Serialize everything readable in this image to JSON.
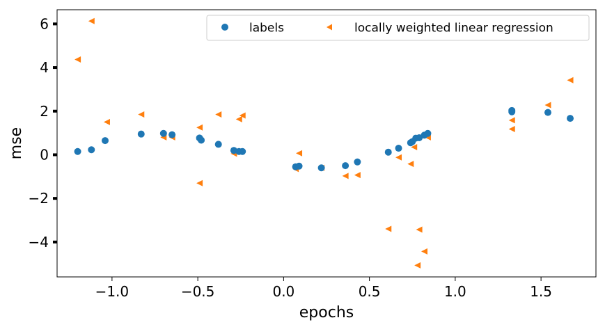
{
  "chart_data": {
    "type": "scatter",
    "title": "",
    "xlabel": "epochs",
    "ylabel": "mse",
    "xlim": [
      -1.32,
      1.82
    ],
    "ylim": [
      -5.6,
      6.65
    ],
    "xticks": [
      -1.0,
      -0.5,
      0.0,
      0.5,
      1.0,
      1.5
    ],
    "xtick_labels": [
      "−1.0",
      "−0.5",
      "0.0",
      "0.5",
      "1.0",
      "1.5"
    ],
    "yticks": [
      -4,
      -2,
      0,
      2,
      4,
      6
    ],
    "ytick_labels": [
      "−4",
      "−2",
      "0",
      "2",
      "4",
      "6"
    ],
    "grid": false,
    "legend_position": "top-right",
    "series": [
      {
        "name": "labels",
        "marker": "circle",
        "color": "#1f77b4",
        "points": [
          [
            -1.2,
            0.15
          ],
          [
            -1.12,
            0.23
          ],
          [
            -1.04,
            0.65
          ],
          [
            -0.83,
            0.95
          ],
          [
            -0.7,
            0.98
          ],
          [
            -0.65,
            0.92
          ],
          [
            -0.49,
            0.77
          ],
          [
            -0.48,
            0.67
          ],
          [
            -0.38,
            0.48
          ],
          [
            -0.29,
            0.2
          ],
          [
            -0.26,
            0.15
          ],
          [
            -0.24,
            0.15
          ],
          [
            0.07,
            -0.55
          ],
          [
            0.09,
            -0.52
          ],
          [
            0.22,
            -0.6
          ],
          [
            0.36,
            -0.5
          ],
          [
            0.43,
            -0.33
          ],
          [
            0.61,
            0.12
          ],
          [
            0.67,
            0.3
          ],
          [
            0.74,
            0.55
          ],
          [
            0.75,
            0.6
          ],
          [
            0.77,
            0.76
          ],
          [
            0.79,
            0.78
          ],
          [
            0.82,
            0.9
          ],
          [
            0.84,
            0.98
          ],
          [
            1.33,
            1.97
          ],
          [
            1.33,
            2.03
          ],
          [
            1.54,
            1.94
          ],
          [
            1.67,
            1.67
          ]
        ]
      },
      {
        "name": "locally weighted linear regression",
        "marker": "triangle-left",
        "color": "#ff7f0e",
        "points": [
          [
            -1.2,
            4.37
          ],
          [
            -1.12,
            6.13
          ],
          [
            -1.03,
            1.5
          ],
          [
            -0.83,
            1.85
          ],
          [
            -0.7,
            0.8
          ],
          [
            -0.65,
            0.8
          ],
          [
            -0.49,
            1.25
          ],
          [
            -0.49,
            -1.3
          ],
          [
            -0.38,
            1.85
          ],
          [
            -0.29,
            0.05
          ],
          [
            -0.26,
            1.63
          ],
          [
            -0.24,
            1.8
          ],
          [
            0.07,
            -0.65
          ],
          [
            0.09,
            0.07
          ],
          [
            0.22,
            -0.6
          ],
          [
            0.36,
            -0.97
          ],
          [
            0.43,
            -0.93
          ],
          [
            0.61,
            -3.4
          ],
          [
            0.67,
            -0.12
          ],
          [
            0.74,
            -0.42
          ],
          [
            0.76,
            0.35
          ],
          [
            0.78,
            -5.07
          ],
          [
            0.79,
            -3.43
          ],
          [
            0.82,
            -4.43
          ],
          [
            0.84,
            0.8
          ],
          [
            1.33,
            1.18
          ],
          [
            1.33,
            1.58
          ],
          [
            1.54,
            2.28
          ],
          [
            1.67,
            3.42
          ]
        ]
      }
    ]
  }
}
